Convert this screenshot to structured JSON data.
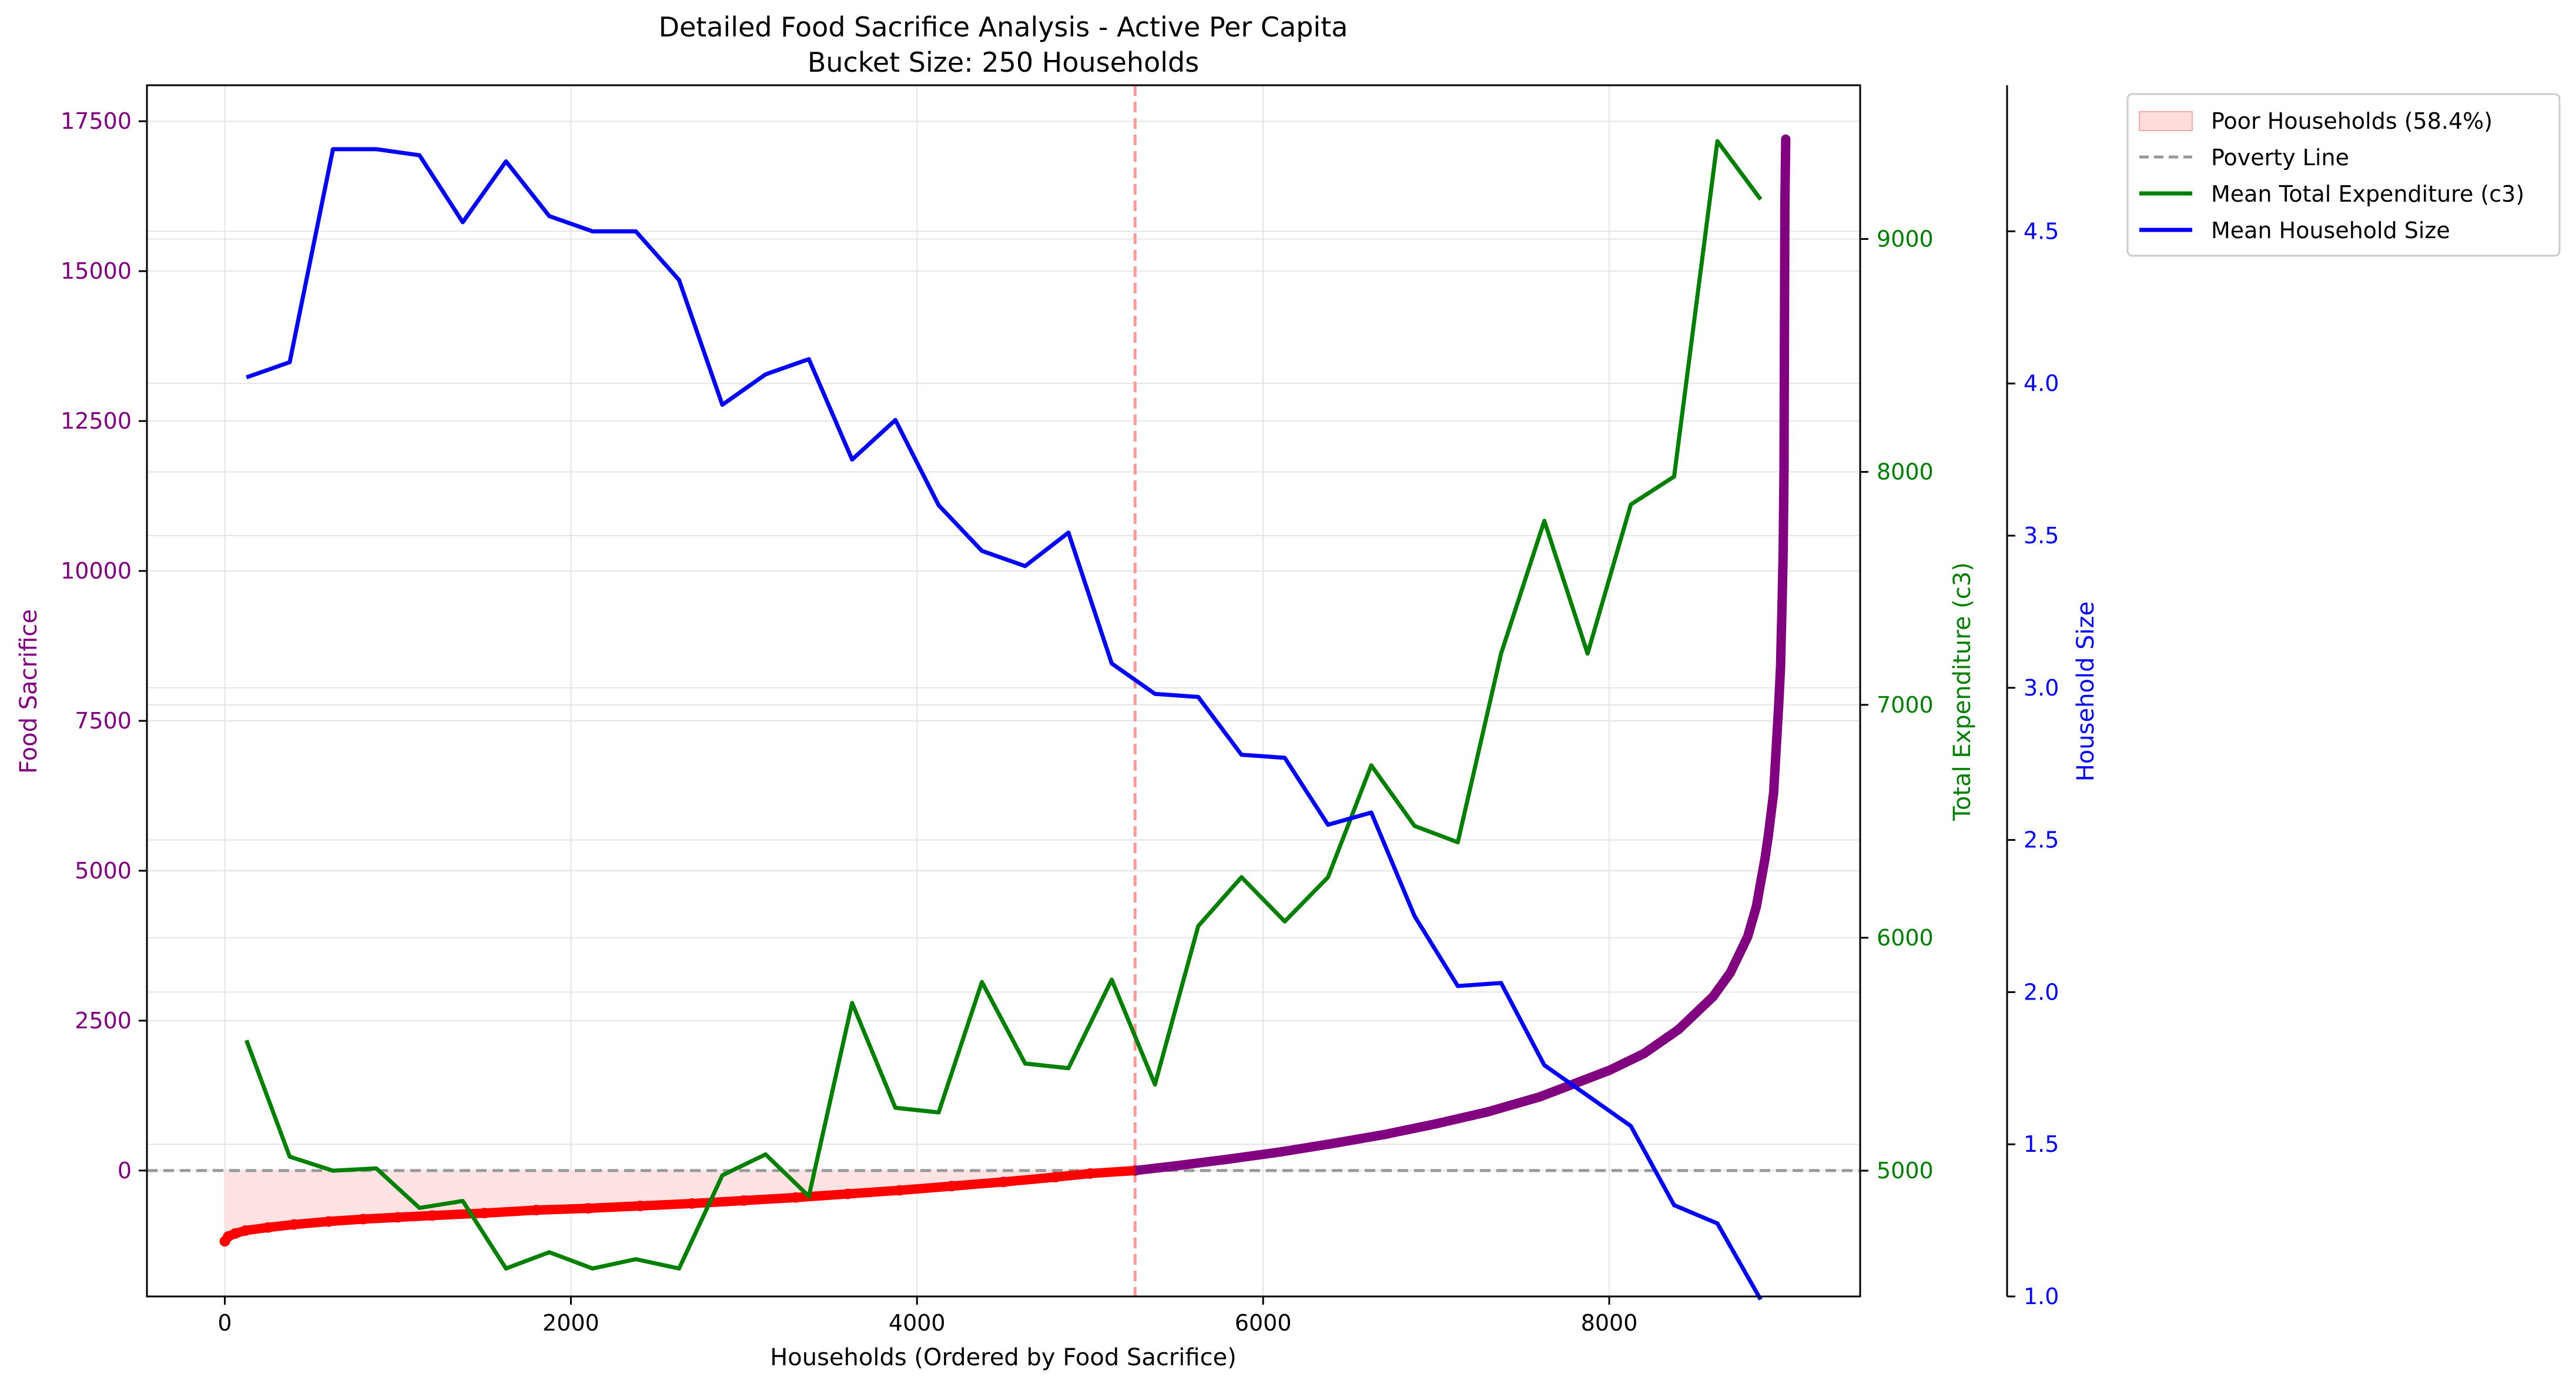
{
  "chart_data": {
    "type": "line",
    "title": "Detailed Food Sacrifice Analysis - Active Per Capita",
    "subtitle": "Bucket Size: 250 Households",
    "xlabel": "Households (Ordered by Food Sacrifice)",
    "ylabel_left": "Food Sacrifice",
    "ylabel_right1": "Total Expenditure (c3)",
    "ylabel_right2": "Household Size",
    "xlim": [
      -450,
      9450
    ],
    "ylim_left": [
      -2100,
      18100
    ],
    "ylim_right1": [
      4460,
      9660
    ],
    "ylim_right2": [
      1.0,
      4.98
    ],
    "x_ticks": [
      0,
      2000,
      4000,
      6000,
      8000
    ],
    "y_left_ticks": [
      0,
      2500,
      5000,
      7500,
      10000,
      12500,
      15000,
      17500
    ],
    "y_right1_ticks": [
      5000,
      6000,
      7000,
      8000,
      9000
    ],
    "y_right2_ticks": [
      1.0,
      1.5,
      2.0,
      2.5,
      3.0,
      3.5,
      4.0,
      4.5
    ],
    "grid": true,
    "legend_placement": "outside-top-right",
    "poverty_line_x": 5260,
    "poverty_line_y": 0,
    "colors": {
      "food_sacrifice_axis": "#800080",
      "expenditure": "#008000",
      "household_size": "#0000ff",
      "poor_points": "#ff0000",
      "nonpoor_points": "#800080",
      "poor_fill": "#ffdddd",
      "poverty_line": "#999999",
      "poverty_vline": "#ff9999"
    },
    "legend": [
      {
        "label": "Poor Households (58.4%)",
        "kind": "fill"
      },
      {
        "label": "Poverty Line",
        "kind": "dashed"
      },
      {
        "label": "Mean Total Expenditure (c3)",
        "kind": "green-line"
      },
      {
        "label": "Mean Household Size",
        "kind": "blue-line"
      }
    ],
    "series": [
      {
        "name": "Mean Total Expenditure (c3)",
        "axis": "right1",
        "x": [
          125,
          375,
          625,
          875,
          1125,
          1375,
          1625,
          1875,
          2125,
          2375,
          2625,
          2875,
          3125,
          3375,
          3625,
          3875,
          4125,
          4375,
          4625,
          4875,
          5125,
          5375,
          5625,
          5875,
          6125,
          6375,
          6625,
          6875,
          7125,
          7375,
          7625,
          7875,
          8125,
          8375,
          8625,
          8875
        ],
        "values": [
          5560,
          5060,
          5000,
          5010,
          4840,
          4870,
          4580,
          4650,
          4580,
          4620,
          4580,
          4980,
          5070,
          4890,
          5720,
          5270,
          5250,
          5810,
          5460,
          5440,
          5820,
          5370,
          6050,
          6260,
          6070,
          6260,
          6740,
          6480,
          6410,
          7220,
          7790,
          7220,
          7860,
          7980,
          9420,
          9170
        ]
      },
      {
        "name": "Mean Household Size",
        "axis": "right2",
        "x": [
          125,
          375,
          625,
          875,
          1125,
          1375,
          1625,
          1875,
          2125,
          2375,
          2625,
          2875,
          3125,
          3375,
          3625,
          3875,
          4125,
          4375,
          4625,
          4875,
          5125,
          5375,
          5625,
          5875,
          6125,
          6375,
          6625,
          6875,
          7125,
          7375,
          7625,
          7875,
          8125,
          8375,
          8625,
          8875
        ],
        "values": [
          4.02,
          4.07,
          4.77,
          4.77,
          4.75,
          4.53,
          4.73,
          4.55,
          4.5,
          4.5,
          4.34,
          3.93,
          4.03,
          4.08,
          3.75,
          3.88,
          3.6,
          3.45,
          3.4,
          3.51,
          3.08,
          2.98,
          2.97,
          2.78,
          2.77,
          2.55,
          2.59,
          2.25,
          2.02,
          2.03,
          1.76,
          1.66,
          1.56,
          1.3,
          1.24,
          0.99
        ]
      },
      {
        "name": "Food Sacrifice",
        "axis": "left",
        "kind": "scatter",
        "x": [
          0,
          20,
          60,
          120,
          250,
          400,
          600,
          800,
          1000,
          1200,
          1500,
          1800,
          2100,
          2400,
          2700,
          3000,
          3300,
          3600,
          3900,
          4200,
          4500,
          4800,
          5000,
          5260,
          5500,
          5800,
          6100,
          6400,
          6700,
          7000,
          7300,
          7600,
          7800,
          8000,
          8200,
          8400,
          8600,
          8700,
          8800,
          8850,
          8900,
          8920,
          8950,
          8960,
          8970,
          8980,
          8990,
          9000,
          9005,
          9010,
          9015,
          9020
        ],
        "values": [
          -1180,
          -1100,
          -1050,
          -1000,
          -950,
          -900,
          -850,
          -810,
          -780,
          -750,
          -710,
          -660,
          -630,
          -590,
          -550,
          -500,
          -450,
          -390,
          -330,
          -260,
          -190,
          -110,
          -50,
          0,
          80,
          190,
          310,
          450,
          600,
          780,
          980,
          1230,
          1450,
          1670,
          1950,
          2350,
          2900,
          3300,
          3900,
          4400,
          5200,
          5600,
          6300,
          6800,
          7300,
          7800,
          8400,
          9600,
          10300,
          11650,
          16100,
          17200
        ]
      }
    ]
  }
}
